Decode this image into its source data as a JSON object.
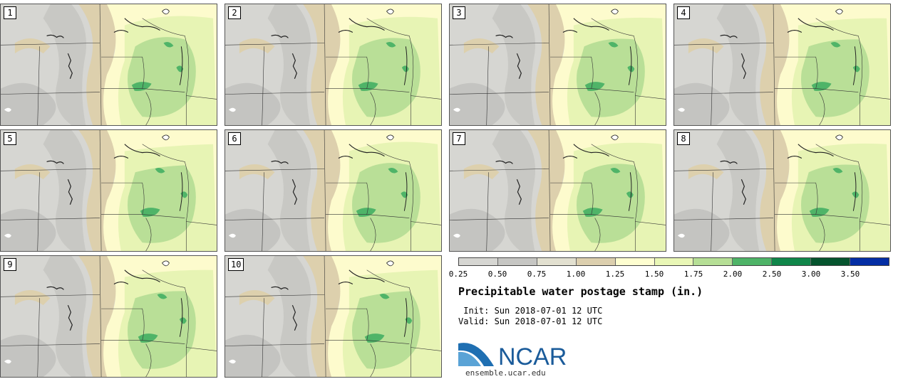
{
  "title": "Precipitable water postage stamp (in.)",
  "init_label": " Init: Sun 2018-07-01 12 UTC",
  "valid_label": "Valid: Sun 2018-07-01 12 UTC",
  "logo_text": "NCAR",
  "logo_url": "ensemble.ucar.edu",
  "members": [
    "1",
    "2",
    "3",
    "4",
    "5",
    "6",
    "7",
    "8",
    "9",
    "10"
  ],
  "colorbar": {
    "ticks": [
      "0.25",
      "0.50",
      "0.75",
      "1.00",
      "1.25",
      "1.50",
      "1.75",
      "2.00",
      "2.50",
      "3.00",
      "3.50"
    ],
    "colors": [
      "#d6d6d2",
      "#c6c6c3",
      "#e2e0d0",
      "#dccfae",
      "#fefed0",
      "#e9f7b6",
      "#b6df96",
      "#4fb468",
      "#10864a",
      "#05542e",
      "#042ea4"
    ]
  },
  "map_colors": {
    "background": "#d6d6d2",
    "dark_gray": "#c4c4c1",
    "tan": "#ddd0ad",
    "pale_yellow": "#fdfbcd",
    "light_green": "#e7f4b4",
    "mid_green": "#b9df97",
    "dark_green": "#4fb468",
    "lake": "#ffffff"
  }
}
